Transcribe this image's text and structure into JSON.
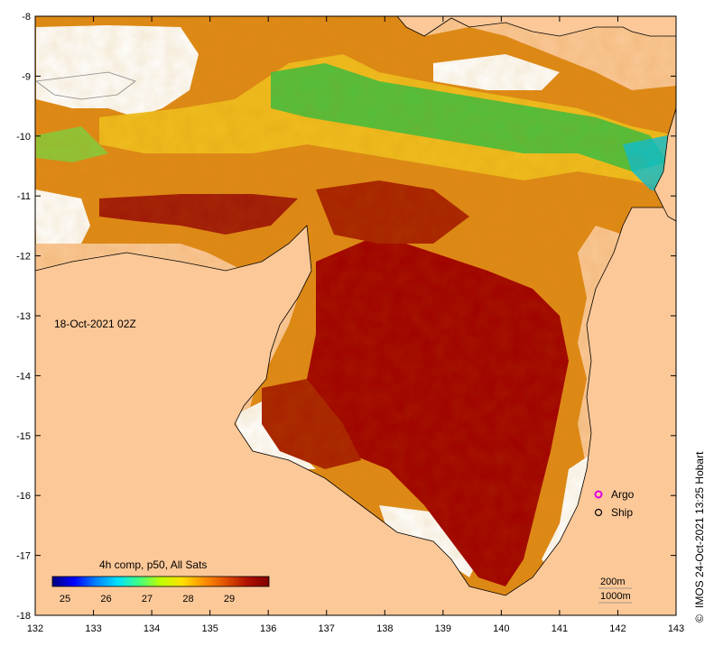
{
  "map": {
    "time_label": "18-Oct-2021 02Z",
    "legend_title": "4h comp, p50, All Sats",
    "colorbar_ticks": [
      "25",
      "26",
      "27",
      "28",
      "29"
    ],
    "colorbar_stops": [
      "#00007f",
      "#0000ff",
      "#0080ff",
      "#00e0ff",
      "#40ff80",
      "#c0ff00",
      "#ffe000",
      "#ff9000",
      "#e05000",
      "#b01000",
      "#800000"
    ],
    "lat_ticks": [
      "-8",
      "-9",
      "-10",
      "-11",
      "-12",
      "-13",
      "-14",
      "-15",
      "-16",
      "-17",
      "-18"
    ],
    "lon_ticks": [
      "132",
      "133",
      "134",
      "135",
      "136",
      "137",
      "138",
      "139",
      "140",
      "141",
      "142",
      "143"
    ],
    "markers": [
      {
        "label": "Argo",
        "symbol": "magenta-circle-icon"
      },
      {
        "label": "Ship",
        "symbol": "black-circle-icon"
      }
    ],
    "contours": [
      "200m",
      "1000m"
    ],
    "credit": "IMOS 24-Oct-2021 13:25 Hobart",
    "copyright_symbol": "©",
    "colors": {
      "land": "#fcc898",
      "nodata": "#ffffff",
      "hot": "#a00000",
      "warm": "#e08010",
      "mild": "#f0c020",
      "cool": "#40c040"
    }
  }
}
